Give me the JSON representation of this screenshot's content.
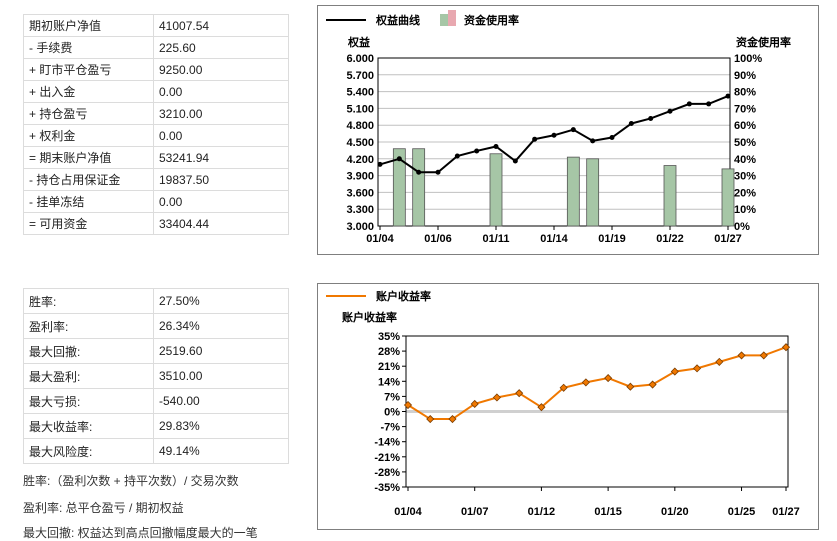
{
  "account_table": {
    "rows": [
      {
        "label": "期初账户净值",
        "value": "41007.54"
      },
      {
        "label": "- 手续费",
        "value": "225.60"
      },
      {
        "label": "+ 盯市平仓盈亏",
        "value": "9250.00"
      },
      {
        "label": "+ 出入金",
        "value": "0.00"
      },
      {
        "label": "+ 持仓盈亏",
        "value": "3210.00"
      },
      {
        "label": "+ 权利金",
        "value": "0.00"
      },
      {
        "label": "= 期末账户净值",
        "value": "53241.94"
      },
      {
        "label": "- 持仓占用保证金",
        "value": "19837.50"
      },
      {
        "label": "- 挂单冻结",
        "value": "0.00"
      },
      {
        "label": "= 可用资金",
        "value": "33404.44"
      }
    ]
  },
  "stats_table": {
    "rows": [
      {
        "label": "胜率:",
        "value": "27.50%"
      },
      {
        "label": "盈利率:",
        "value": "26.34%"
      },
      {
        "label": "最大回撤:",
        "value": "2519.60"
      },
      {
        "label": "最大盈利:",
        "value": "3510.00"
      },
      {
        "label": "最大亏损:",
        "value": "-540.00"
      },
      {
        "label": "最大收益率:",
        "value": "29.83%"
      },
      {
        "label": "最大风险度:",
        "value": "49.14%"
      }
    ]
  },
  "notes": [
    "胜率:（盈利次数 + 持平次数）/ 交易次数",
    "盈利率: 总平仓盈亏 / 期初权益",
    "最大回撤: 权益达到高点回撤幅度最大的一笔"
  ],
  "colors": {
    "equity_line": "#000000",
    "usage_bar_fill": "#a6c6a6",
    "usage_legend": "#e8a8b0",
    "return_line": "#f07800",
    "grid": "#c0c0c0"
  },
  "chart_data": [
    {
      "type": "line",
      "legend": [
        "权益曲线",
        "资金使用率"
      ],
      "ylabel_left": "权益",
      "ylabel_right": "资金使用率",
      "x_tick_labels": [
        "01/04",
        "01/06",
        "01/11",
        "01/14",
        "01/19",
        "01/22",
        "01/27"
      ],
      "x_tick_index": [
        0,
        3,
        6,
        9,
        12,
        15,
        18
      ],
      "ylim_left": [
        3.0,
        6.0
      ],
      "y_ticks_left": [
        "3.000",
        "3.300",
        "3.600",
        "3.900",
        "4.200",
        "4.500",
        "4.800",
        "5.100",
        "5.400",
        "5.700",
        "6.000"
      ],
      "ylim_right": [
        0,
        100
      ],
      "y_ticks_right": [
        "0%",
        "10%",
        "20%",
        "30%",
        "40%",
        "50%",
        "60%",
        "70%",
        "80%",
        "90%",
        "100%"
      ],
      "series": [
        {
          "name": "权益曲线",
          "kind": "line",
          "values": [
            4.1,
            4.2,
            3.96,
            3.96,
            4.25,
            4.34,
            4.42,
            4.16,
            4.55,
            4.62,
            4.72,
            4.52,
            4.58,
            4.83,
            4.92,
            5.05,
            5.18,
            5.18,
            5.32
          ]
        },
        {
          "name": "资金使用率",
          "kind": "bar",
          "values": [
            0,
            46,
            46,
            0,
            0,
            0,
            43,
            0,
            0,
            0,
            41,
            40,
            0,
            0,
            0,
            36,
            0,
            0,
            34
          ]
        }
      ]
    },
    {
      "type": "line",
      "legend": [
        "账户收益率"
      ],
      "ylabel": "账户收益率",
      "x_tick_labels": [
        "01/04",
        "01/07",
        "01/12",
        "01/15",
        "01/20",
        "01/25",
        "01/27"
      ],
      "x_tick_index": [
        0,
        3,
        6,
        9,
        12,
        15,
        17
      ],
      "ylim": [
        -35,
        35
      ],
      "y_ticks": [
        "35%",
        "28%",
        "21%",
        "14%",
        "7%",
        "0%",
        "-7%",
        "-14%",
        "-21%",
        "-28%",
        "-35%"
      ],
      "series": [
        {
          "name": "账户收益率",
          "values": [
            3.0,
            -3.5,
            -3.5,
            3.5,
            6.5,
            8.5,
            2.0,
            11.0,
            13.5,
            15.5,
            11.5,
            12.5,
            18.5,
            20.0,
            23.0,
            26.0,
            26.0,
            29.8
          ]
        }
      ]
    }
  ]
}
